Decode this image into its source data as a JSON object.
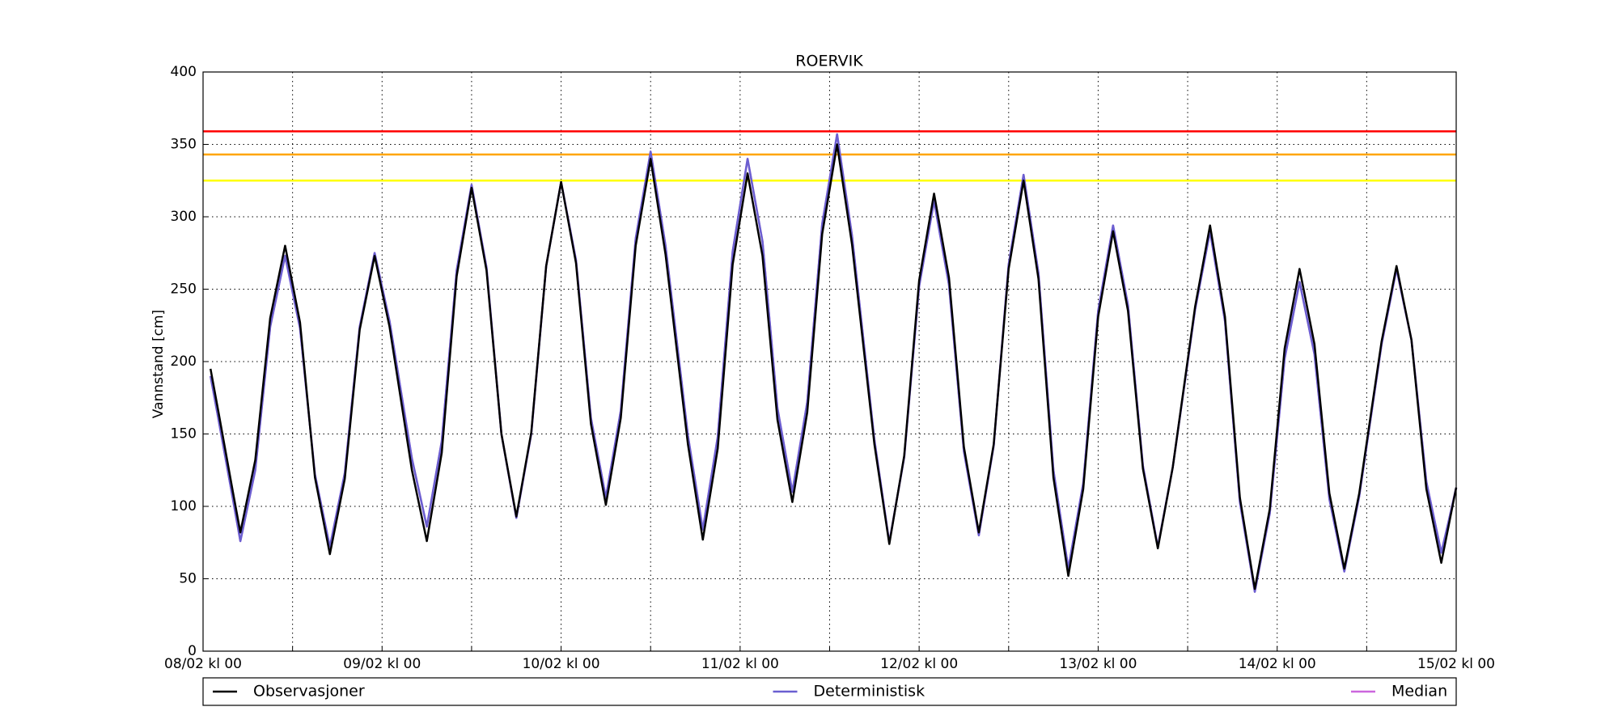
{
  "chart_data": {
    "type": "line",
    "title": "ROERVIK",
    "ylabel": "Vannstand [cm]",
    "x": [
      1,
      2,
      4,
      5,
      7,
      9,
      11,
      13,
      15,
      17,
      19,
      21,
      23,
      25,
      28,
      30,
      32,
      34,
      36,
      38,
      40,
      42,
      44,
      46,
      48,
      50,
      52,
      54,
      56,
      58,
      60,
      62,
      65,
      67,
      69,
      71,
      73,
      75,
      77,
      79,
      81,
      83,
      85,
      87,
      90,
      92,
      94,
      96,
      98,
      100,
      102,
      104,
      106,
      108,
      110,
      112,
      114,
      116,
      118,
      120,
      122,
      124,
      126,
      128,
      130,
      133,
      135,
      137,
      139,
      141,
      143,
      145,
      147,
      149,
      151,
      153,
      155,
      158,
      160,
      162,
      164,
      166,
      167,
      168
    ],
    "series": [
      {
        "name": "Median",
        "color": "#cc66dd",
        "values": [
          190,
          162,
          105,
          76,
          125,
          224,
          273,
          223,
          122,
          72,
          123,
          224,
          275,
          228,
          133,
          86,
          145,
          263,
          322,
          265,
          150,
          92,
          150,
          266,
          324,
          270,
          161,
          106,
          166,
          285,
          345,
          280,
          149,
          84,
          148,
          276,
          340,
          283,
          168,
          110,
          172,
          295,
          357,
          287,
          146,
          75,
          134,
          252,
          311,
          253,
          138,
          80,
          142,
          267,
          329,
          261,
          125,
          57,
          116,
          235,
          294,
          239,
          128,
          72,
          127,
          236,
          290,
          228,
          103,
          41,
          95,
          202,
          255,
          205,
          105,
          55,
          107,
          212,
          264,
          215,
          117,
          68,
          90,
          113
        ]
      },
      {
        "name": "Deterministisk",
        "color": "#6a5fd0",
        "values": [
          190,
          162,
          105,
          76,
          125,
          224,
          273,
          223,
          122,
          72,
          123,
          224,
          275,
          228,
          133,
          86,
          145,
          263,
          322,
          265,
          150,
          92,
          150,
          266,
          324,
          270,
          161,
          106,
          166,
          285,
          345,
          280,
          149,
          84,
          148,
          276,
          340,
          283,
          168,
          110,
          172,
          295,
          357,
          287,
          146,
          75,
          134,
          252,
          311,
          253,
          138,
          80,
          142,
          267,
          329,
          261,
          125,
          57,
          116,
          235,
          294,
          239,
          128,
          72,
          127,
          236,
          290,
          228,
          103,
          41,
          95,
          202,
          255,
          205,
          105,
          55,
          107,
          212,
          264,
          215,
          117,
          68,
          90,
          113
        ]
      },
      {
        "name": "Observasjoner",
        "color": "#000000",
        "values": [
          195,
          167,
          110,
          82,
          132,
          230,
          280,
          227,
          120,
          67,
          119,
          222,
          273,
          224,
          125,
          76,
          137,
          259,
          320,
          263,
          150,
          93,
          151,
          266,
          324,
          268,
          157,
          101,
          161,
          280,
          340,
          274,
          143,
          77,
          140,
          267,
          330,
          273,
          160,
          103,
          165,
          288,
          350,
          281,
          143,
          74,
          135,
          256,
          316,
          258,
          141,
          82,
          143,
          264,
          325,
          257,
          120,
          52,
          112,
          231,
          290,
          235,
          126,
          71,
          127,
          238,
          294,
          231,
          106,
          43,
          98,
          209,
          264,
          212,
          109,
          57,
          109,
          214,
          266,
          215,
          112,
          61,
          87,
          113
        ]
      }
    ],
    "legend_order": [
      2,
      1,
      0
    ],
    "reference_lines": [
      {
        "value": 359,
        "color": "#ff0000"
      },
      {
        "value": 343,
        "color": "#ffa500"
      },
      {
        "value": 325,
        "color": "#ffff00"
      }
    ],
    "xlim": [
      0,
      168
    ],
    "xticks": [
      {
        "value": 0,
        "label": "08/02 kl 00"
      },
      {
        "value": 24,
        "label": "09/02 kl 00"
      },
      {
        "value": 48,
        "label": "10/02 kl 00"
      },
      {
        "value": 72,
        "label": "11/02 kl 00"
      },
      {
        "value": 96,
        "label": "12/02 kl 00"
      },
      {
        "value": 120,
        "label": "13/02 kl 00"
      },
      {
        "value": 144,
        "label": "14/02 kl 00"
      },
      {
        "value": 168,
        "label": "15/02 kl 00"
      }
    ],
    "xminorticks": [
      12,
      36,
      60,
      84,
      108,
      132,
      156
    ],
    "ylim": [
      0,
      400
    ],
    "yticks": [
      0,
      50,
      100,
      150,
      200,
      250,
      300,
      350,
      400
    ],
    "grid": true,
    "legend": "bottom"
  }
}
